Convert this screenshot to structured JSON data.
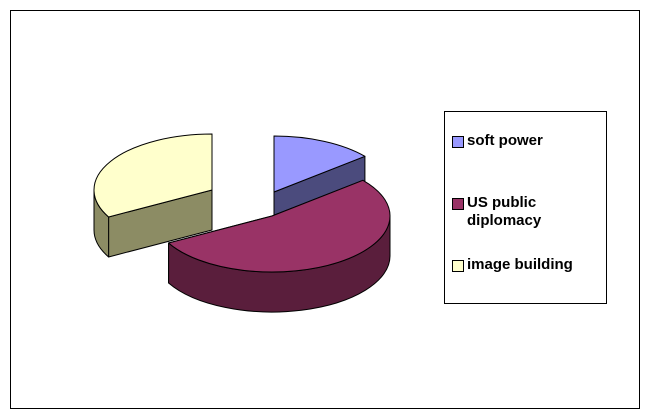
{
  "chart_data": {
    "type": "pie",
    "title": "",
    "slices": [
      {
        "label": "soft power",
        "value": 14,
        "color": "#9999ff",
        "side_color": "#4b4b7d"
      },
      {
        "label": "US public diplomacy",
        "value": 53,
        "color": "#993366",
        "side_color": "#5a1e3c"
      },
      {
        "label": "image building",
        "value": 33,
        "color": "#ffffcc",
        "side_color": "#8c8c64"
      }
    ],
    "legend_position": "right",
    "style": "3d-exploded"
  },
  "legend": {
    "items": [
      {
        "label": "soft power"
      },
      {
        "label": "US public diplomacy"
      },
      {
        "label": "image building"
      }
    ]
  }
}
